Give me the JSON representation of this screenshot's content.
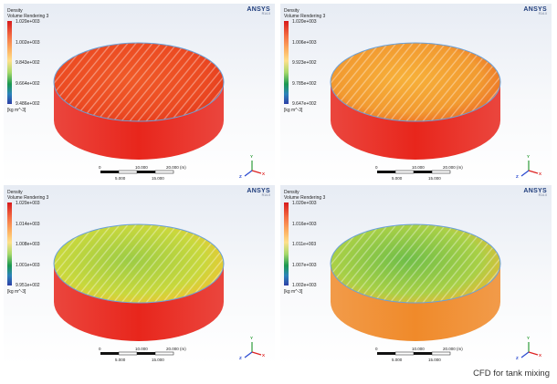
{
  "panels": [
    {
      "title": "Density",
      "subtitle": "Volume Rendering 3",
      "ticks": [
        "1.020e+003",
        "1.002e+003",
        "9.843e+002",
        "9.664e+002",
        "9.486e+002"
      ],
      "unit": "[kg m^-3]",
      "top_colors": [
        "#f05a28",
        "#ec4b22",
        "#e43a1c"
      ],
      "side_color": "#e8261c"
    },
    {
      "title": "Density",
      "subtitle": "Volume Rendering 3",
      "ticks": [
        "1.020e+003",
        "1.006e+003",
        "9.923e+002",
        "9.785e+002",
        "9.647e+002"
      ],
      "unit": "[kg m^-3]",
      "top_colors": [
        "#f7b13a",
        "#f29a30",
        "#ec6a24"
      ],
      "side_color": "#e8261c"
    },
    {
      "title": "Density",
      "subtitle": "Volume Rendering 3",
      "ticks": [
        "1.020e+003",
        "1.014e+003",
        "1.008e+003",
        "1.001e+003",
        "9.951e+002"
      ],
      "unit": "[kg m^-3]",
      "top_colors": [
        "#9ccc45",
        "#c9d83c",
        "#f2c230"
      ],
      "side_color": "#e8261c"
    },
    {
      "title": "Density",
      "subtitle": "Volume Rendering 3",
      "ticks": [
        "1.020e+003",
        "1.016e+003",
        "1.011e+003",
        "1.007e+003",
        "1.002e+003"
      ],
      "unit": "[kg m^-3]",
      "top_colors": [
        "#6fbe48",
        "#a9d046",
        "#e8b834"
      ],
      "side_color": "#f08a2a"
    }
  ],
  "brand": {
    "name": "ANSYS",
    "version": "R14.0"
  },
  "scale": {
    "top_labels": [
      "0",
      "10.000",
      "20.000 (m)"
    ],
    "bottom_labels": [
      "5.000",
      "15.000"
    ]
  },
  "axes": {
    "x": "X",
    "y": "Y",
    "z": "Z"
  },
  "caption": "CFD for tank mixing"
}
